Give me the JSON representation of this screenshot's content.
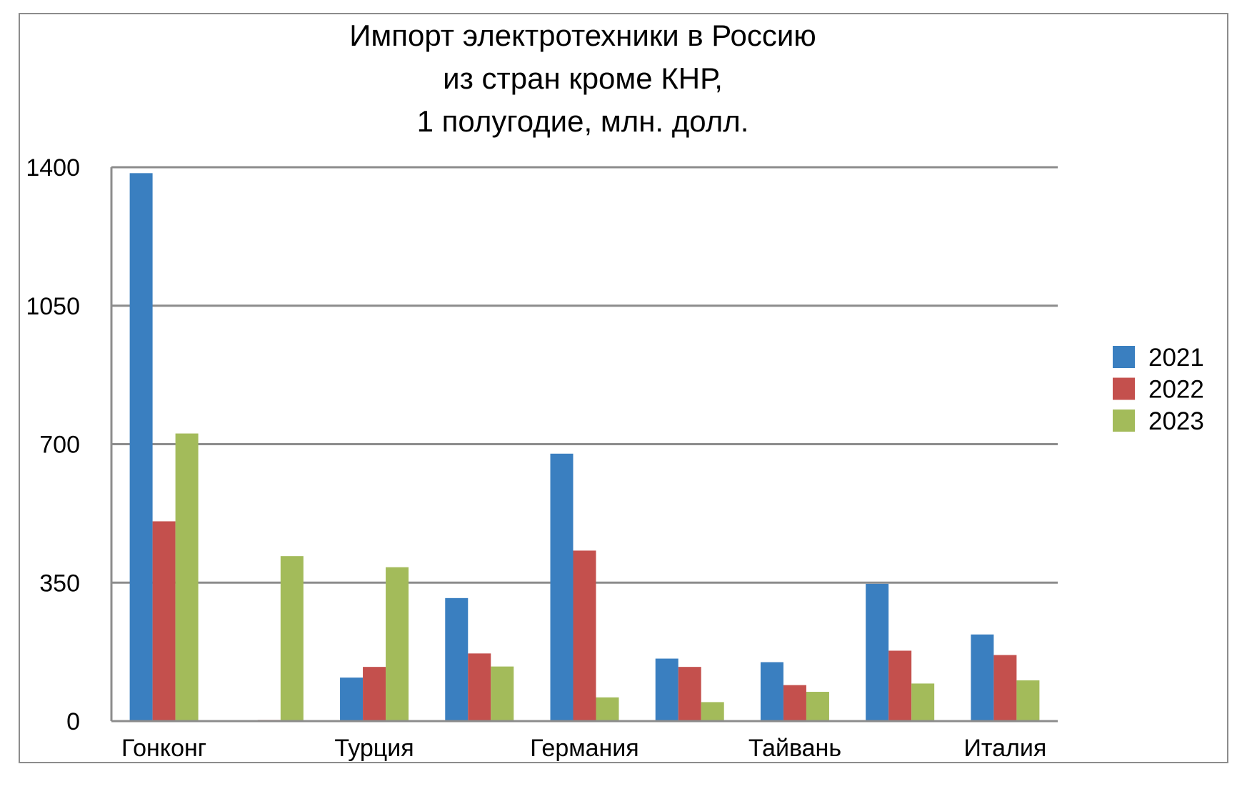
{
  "chart_data": {
    "type": "bar",
    "title": [
      "Импорт электротехники в Россию",
      "из стран кроме КНР,",
      "1 полугодие, млн. долл."
    ],
    "categories": [
      "Гонконг",
      "",
      "Турция",
      "",
      "Германия",
      "",
      "Тайвань",
      "",
      "Италия"
    ],
    "series": [
      {
        "name": "2021",
        "color": "#3a7fc0",
        "values": [
          1385,
          0,
          110,
          311,
          676,
          158,
          149,
          347,
          219
        ]
      },
      {
        "name": "2022",
        "color": "#c4504d",
        "values": [
          505,
          3,
          137,
          171,
          431,
          137,
          91,
          178,
          167
        ]
      },
      {
        "name": "2023",
        "color": "#a3bb5a",
        "values": [
          727,
          417,
          389,
          138,
          60,
          48,
          74,
          95,
          103
        ]
      }
    ],
    "yticks": [
      "0",
      "350",
      "700",
      "1050",
      "1400"
    ],
    "ylim": [
      0,
      1400
    ],
    "grid": true,
    "legend": "right",
    "xlabel": "",
    "ylabel": ""
  }
}
